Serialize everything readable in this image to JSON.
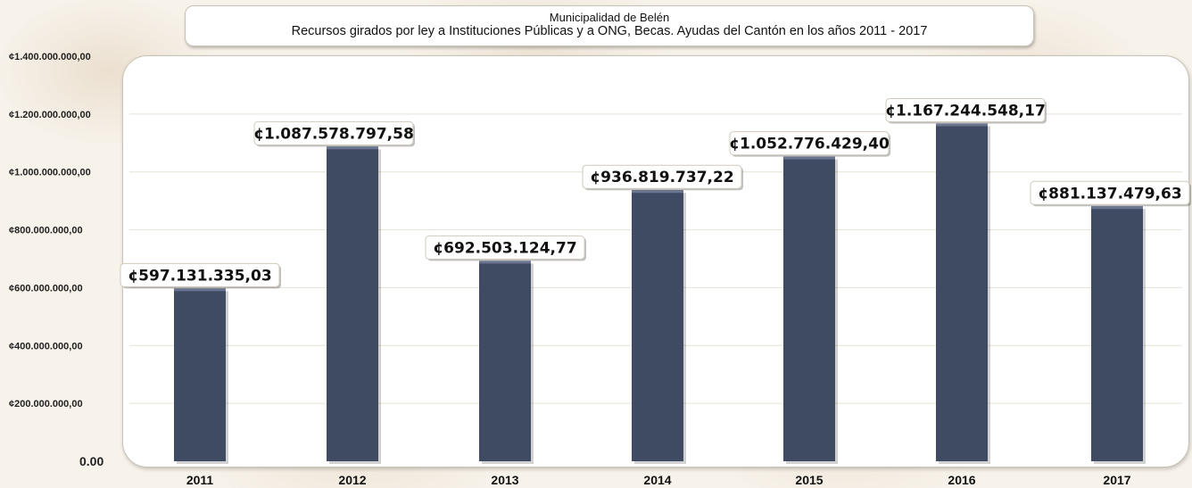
{
  "chart_data": {
    "type": "bar",
    "title": "Municipalidad de Belén",
    "subtitle": "Recursos girados por ley a Instituciones Públicas y a ONG, Becas. Ayudas del Cantón en los años 2011 - 2017",
    "xlabel": "",
    "ylabel": "",
    "categories": [
      "2011",
      "2012",
      "2013",
      "2014",
      "2015",
      "2016",
      "2017"
    ],
    "values": [
      597131335.03,
      1087578797.58,
      692503124.77,
      936819737.22,
      1052776429.4,
      1167244548.17,
      881137479.63
    ],
    "data_labels": [
      "¢597.131.335,03",
      "¢1.087.578.797,58",
      "¢692.503.124,77",
      "¢936.819.737,22",
      "¢1.052.776.429,40",
      "¢1.167.244.548,17",
      "¢881.137.479,63"
    ],
    "ylim": [
      0,
      1400000000
    ],
    "yticks": [
      0,
      200000000,
      400000000,
      600000000,
      800000000,
      1000000000,
      1200000000,
      1400000000
    ],
    "ytick_labels": [
      "0.00",
      "¢200.000.000,00",
      "¢400.000.000,00",
      "¢600.000.000,00",
      "¢800.000.000,00",
      "¢1.000.000.000,00",
      "¢1.200.000.000,00",
      "¢1.400.000.000,00"
    ],
    "grid": true,
    "legend": "none",
    "bar_color": "#3f4a63"
  }
}
